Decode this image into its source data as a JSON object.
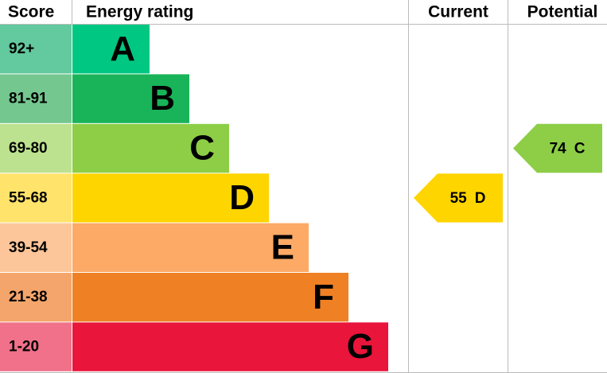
{
  "header": {
    "score": "Score",
    "rating": "Energy rating",
    "current": "Current",
    "potential": "Potential"
  },
  "bands": [
    {
      "score": "92+",
      "letter": "A",
      "color": "#00c781",
      "score_color": "#63c99e"
    },
    {
      "score": "81-91",
      "letter": "B",
      "color": "#19b459",
      "score_color": "#74c78f"
    },
    {
      "score": "69-80",
      "letter": "C",
      "color": "#8dce46",
      "score_color": "#bde28f"
    },
    {
      "score": "55-68",
      "letter": "D",
      "color": "#ffd500",
      "score_color": "#ffe36b"
    },
    {
      "score": "39-54",
      "letter": "E",
      "color": "#fcaa65",
      "score_color": "#fdc69a"
    },
    {
      "score": "21-38",
      "letter": "F",
      "color": "#ef8023",
      "score_color": "#f4a56b"
    },
    {
      "score": "1-20",
      "letter": "G",
      "color": "#e9153b",
      "score_color": "#f07189"
    }
  ],
  "current": {
    "value": 55,
    "band": "D"
  },
  "potential": {
    "value": 74,
    "band": "C"
  }
}
